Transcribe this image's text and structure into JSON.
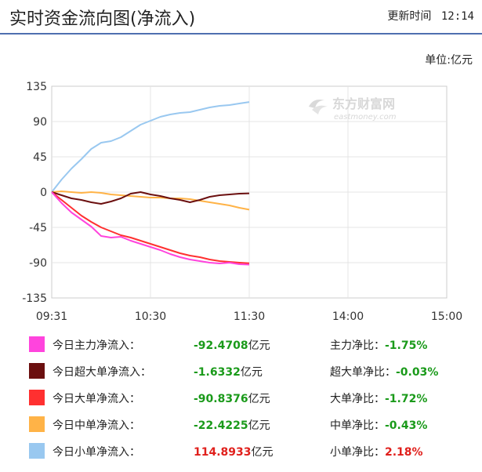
{
  "header": {
    "title": "实时资金流向图(净流入)",
    "update_label": "更新时间",
    "update_time": "12:14"
  },
  "unit_label": "单位:亿元",
  "watermark": {
    "brand": "东方财富网",
    "domain": "eastmoney.com"
  },
  "colors": {
    "main": "#ff44dd",
    "super": "#6b0f0f",
    "large": "#ff3030",
    "medium": "#ffb347",
    "small": "#99c8f0",
    "positive": "#e0201c",
    "negative": "#1a9a1a"
  },
  "chart_data": {
    "type": "line",
    "title": "实时资金流向图(净流入)",
    "ylabel": "单位:亿元",
    "ylim": [
      -135,
      135
    ],
    "yticks": [
      "135",
      "90",
      "45",
      "0",
      "-45",
      "-90",
      "-135"
    ],
    "ytick_values": [
      135,
      90,
      45,
      0,
      -45,
      -90,
      -135
    ],
    "xticks": [
      "09:31",
      "10:30",
      "11:30",
      "14:00",
      "15:00"
    ],
    "x_minutes": [
      0,
      60,
      120,
      180,
      240
    ],
    "x_range_minutes": [
      0,
      240
    ],
    "grid": true,
    "series": [
      {
        "key": "small",
        "name": "今日小单净流入",
        "x": [
          0,
          6,
          12,
          18,
          24,
          30,
          36,
          42,
          48,
          54,
          60,
          66,
          72,
          78,
          84,
          90,
          96,
          102,
          108,
          114,
          120
        ],
        "values": [
          0,
          16,
          30,
          42,
          55,
          63,
          65,
          70,
          78,
          86,
          91,
          96,
          99,
          101,
          102,
          105,
          108,
          110,
          111,
          113,
          114.9
        ]
      },
      {
        "key": "medium",
        "name": "今日中单净流入",
        "x": [
          0,
          6,
          12,
          18,
          24,
          30,
          36,
          42,
          48,
          54,
          60,
          66,
          72,
          78,
          84,
          90,
          96,
          102,
          108,
          114,
          120
        ],
        "values": [
          0,
          1,
          0,
          -1,
          0,
          -1,
          -3,
          -4,
          -5,
          -6,
          -7,
          -7,
          -8,
          -8,
          -9,
          -11,
          -13,
          -15,
          -17,
          -20,
          -22.4
        ]
      },
      {
        "key": "super",
        "name": "今日超大单净流入",
        "x": [
          0,
          6,
          12,
          18,
          24,
          30,
          36,
          42,
          48,
          54,
          60,
          66,
          72,
          78,
          84,
          90,
          96,
          102,
          108,
          114,
          120
        ],
        "values": [
          0,
          -4,
          -8,
          -10,
          -13,
          -15,
          -12,
          -8,
          -2,
          0,
          -3,
          -5,
          -8,
          -10,
          -13,
          -10,
          -6,
          -4,
          -3,
          -2,
          -1.6
        ]
      },
      {
        "key": "large",
        "name": "今日大单净流入",
        "x": [
          0,
          6,
          12,
          18,
          24,
          30,
          36,
          42,
          48,
          54,
          60,
          66,
          72,
          78,
          84,
          90,
          96,
          102,
          108,
          114,
          120
        ],
        "values": [
          0,
          -10,
          -20,
          -30,
          -38,
          -45,
          -50,
          -55,
          -58,
          -62,
          -66,
          -70,
          -74,
          -78,
          -81,
          -83,
          -86,
          -88,
          -89,
          -90,
          -90.8
        ]
      },
      {
        "key": "main",
        "name": "今日主力净流入",
        "x": [
          0,
          6,
          12,
          18,
          24,
          30,
          36,
          42,
          48,
          54,
          60,
          66,
          72,
          78,
          84,
          90,
          96,
          102,
          108,
          114,
          120
        ],
        "values": [
          0,
          -14,
          -26,
          -35,
          -44,
          -56,
          -58,
          -57,
          -62,
          -66,
          -70,
          -74,
          -79,
          -83,
          -86,
          -88,
          -90,
          -91,
          -90,
          -92,
          -92.5
        ]
      }
    ]
  },
  "legend": [
    {
      "key": "main",
      "label": "今日主力净流入：",
      "value": "-92.4708",
      "unit": "亿元",
      "ratio_label": "主力净比：",
      "ratio": "-1.75%",
      "sign": "negative"
    },
    {
      "key": "super",
      "label": "今日超大单净流入：",
      "value": "-1.6332",
      "unit": "亿元",
      "ratio_label": "超大单净比：",
      "ratio": "-0.03%",
      "sign": "negative"
    },
    {
      "key": "large",
      "label": "今日大单净流入：",
      "value": "-90.8376",
      "unit": "亿元",
      "ratio_label": "大单净比：",
      "ratio": "-1.72%",
      "sign": "negative"
    },
    {
      "key": "medium",
      "label": "今日中单净流入：",
      "value": "-22.4225",
      "unit": "亿元",
      "ratio_label": "中单净比：",
      "ratio": "-0.43%",
      "sign": "negative"
    },
    {
      "key": "small",
      "label": "今日小单净流入：",
      "value": "114.8933",
      "unit": "亿元",
      "ratio_label": "小单净比：",
      "ratio": "2.18%",
      "sign": "positive"
    }
  ]
}
